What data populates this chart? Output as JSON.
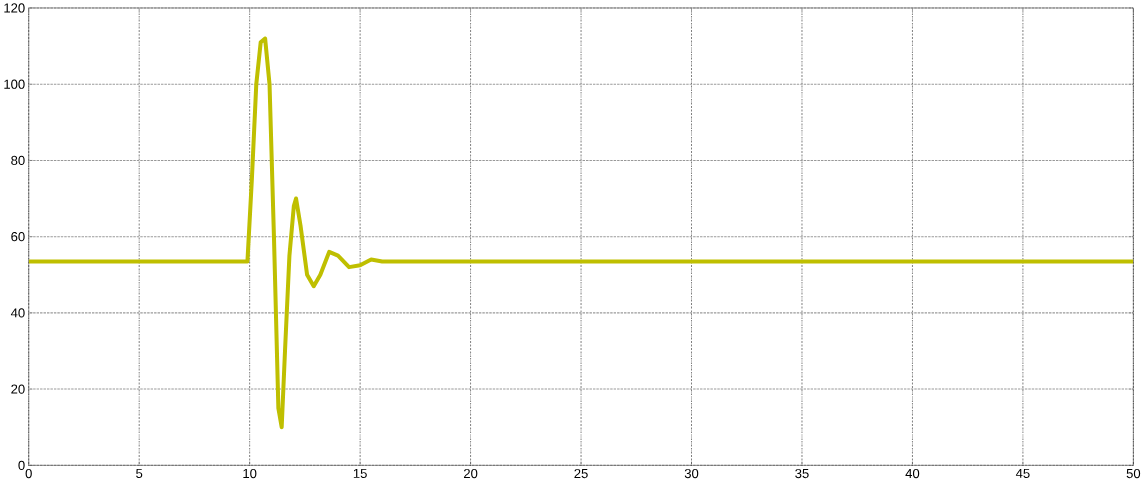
{
  "chart_data": {
    "type": "line",
    "x": [
      0,
      9.9,
      10.1,
      10.3,
      10.5,
      10.7,
      10.9,
      11.1,
      11.3,
      11.45,
      11.6,
      11.8,
      12.0,
      12.1,
      12.3,
      12.6,
      12.9,
      13.2,
      13.6,
      14.0,
      14.5,
      15.0,
      15.5,
      16,
      50
    ],
    "series": [
      {
        "color": "#bfbf00",
        "values": [
          53.5,
          53.5,
          75,
          100,
          111,
          112,
          100,
          60,
          15,
          10,
          30,
          55,
          68,
          70,
          63,
          50,
          47,
          50,
          56,
          55,
          52,
          52.5,
          54,
          53.5,
          53.5
        ]
      }
    ],
    "xlim": [
      0,
      50
    ],
    "ylim": [
      0,
      120
    ],
    "xticks": [
      0,
      5,
      10,
      15,
      20,
      25,
      30,
      35,
      40,
      45,
      50
    ],
    "yticks": [
      0,
      20,
      40,
      60,
      80,
      100,
      120
    ],
    "grid": true
  }
}
